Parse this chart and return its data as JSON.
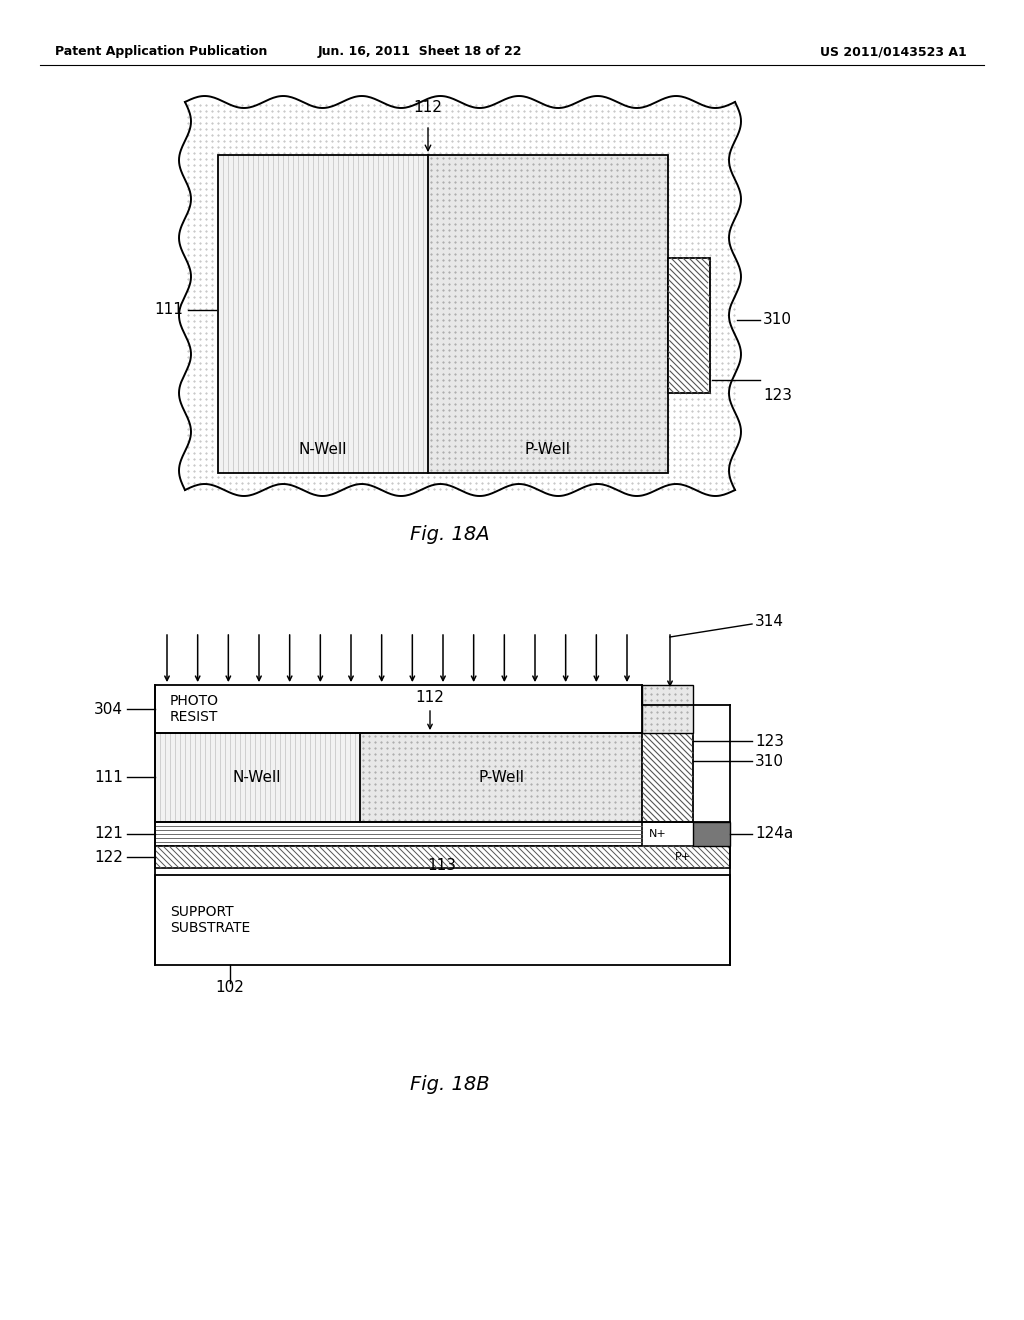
{
  "header_left": "Patent Application Publication",
  "header_mid": "Jun. 16, 2011  Sheet 18 of 22",
  "header_right": "US 2011/0143523 A1",
  "fig_label_a": "Fig. 18A",
  "fig_label_b": "Fig. 18B",
  "background": "#ffffff",
  "fg": "#000000"
}
